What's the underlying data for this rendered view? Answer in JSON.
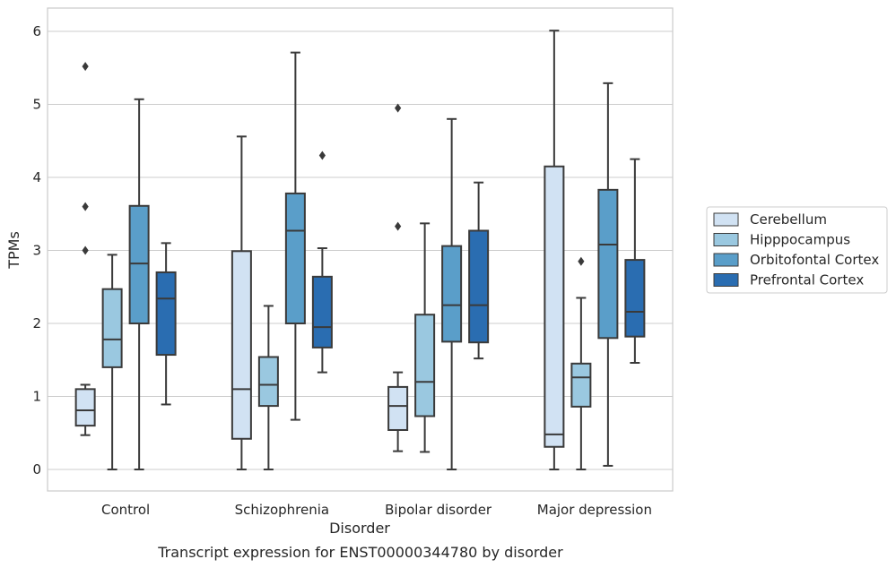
{
  "caption": "Transcript expression for ENST00000344780 by disorder",
  "chart_data": {
    "type": "boxplot",
    "title": "",
    "xlabel": "Disorder",
    "ylabel": "TPMs",
    "ylim": [
      -0.3,
      6.3
    ],
    "yticks": [
      0,
      1,
      2,
      3,
      4,
      5,
      6
    ],
    "grid": true,
    "legend_position": "right",
    "categories": [
      "Control",
      "Schizophrenia",
      "Bipolar disorder",
      "Major depression"
    ],
    "series": [
      {
        "name": "Cerebellum",
        "color": "#d1e2f3",
        "boxes": [
          {
            "whislo": 0.47,
            "q1": 0.6,
            "med": 0.81,
            "q3": 1.1,
            "whishi": 1.16,
            "fliers": [
              3.0,
              3.6,
              5.52
            ]
          },
          {
            "whislo": 0.0,
            "q1": 0.42,
            "med": 1.1,
            "q3": 2.99,
            "whishi": 4.56,
            "fliers": []
          },
          {
            "whislo": 0.25,
            "q1": 0.54,
            "med": 0.87,
            "q3": 1.13,
            "whishi": 1.33,
            "fliers": [
              3.33,
              4.95
            ]
          },
          {
            "whislo": 0.0,
            "q1": 0.31,
            "med": 0.48,
            "q3": 4.15,
            "whishi": 6.01,
            "fliers": []
          }
        ]
      },
      {
        "name": "Hipppocampus",
        "color": "#9ac8e0",
        "boxes": [
          {
            "whislo": 0.0,
            "q1": 1.4,
            "med": 1.78,
            "q3": 2.47,
            "whishi": 2.94,
            "fliers": []
          },
          {
            "whislo": 0.0,
            "q1": 0.87,
            "med": 1.16,
            "q3": 1.54,
            "whishi": 2.24,
            "fliers": []
          },
          {
            "whislo": 0.24,
            "q1": 0.73,
            "med": 1.2,
            "q3": 2.12,
            "whishi": 3.37,
            "fliers": []
          },
          {
            "whislo": 0.0,
            "q1": 0.86,
            "med": 1.26,
            "q3": 1.45,
            "whishi": 2.35,
            "fliers": [
              2.85
            ]
          }
        ]
      },
      {
        "name": "Orbitofontal Cortex",
        "color": "#5a9ec9",
        "boxes": [
          {
            "whislo": 0.0,
            "q1": 2.0,
            "med": 2.82,
            "q3": 3.61,
            "whishi": 5.07,
            "fliers": []
          },
          {
            "whislo": 0.68,
            "q1": 2.0,
            "med": 3.27,
            "q3": 3.78,
            "whishi": 5.71,
            "fliers": []
          },
          {
            "whislo": 0.0,
            "q1": 1.75,
            "med": 2.25,
            "q3": 3.06,
            "whishi": 4.8,
            "fliers": []
          },
          {
            "whislo": 0.05,
            "q1": 1.8,
            "med": 3.08,
            "q3": 3.83,
            "whishi": 5.29,
            "fliers": []
          }
        ]
      },
      {
        "name": "Prefrontal Cortex",
        "color": "#2a6db1",
        "boxes": [
          {
            "whislo": 0.89,
            "q1": 1.57,
            "med": 2.34,
            "q3": 2.7,
            "whishi": 3.1,
            "fliers": []
          },
          {
            "whislo": 1.33,
            "q1": 1.67,
            "med": 1.95,
            "q3": 2.64,
            "whishi": 3.03,
            "fliers": [
              4.3
            ]
          },
          {
            "whislo": 1.52,
            "q1": 1.74,
            "med": 2.25,
            "q3": 3.27,
            "whishi": 3.93,
            "fliers": []
          },
          {
            "whislo": 1.46,
            "q1": 1.82,
            "med": 2.16,
            "q3": 2.87,
            "whishi": 4.25,
            "fliers": []
          }
        ]
      }
    ]
  }
}
